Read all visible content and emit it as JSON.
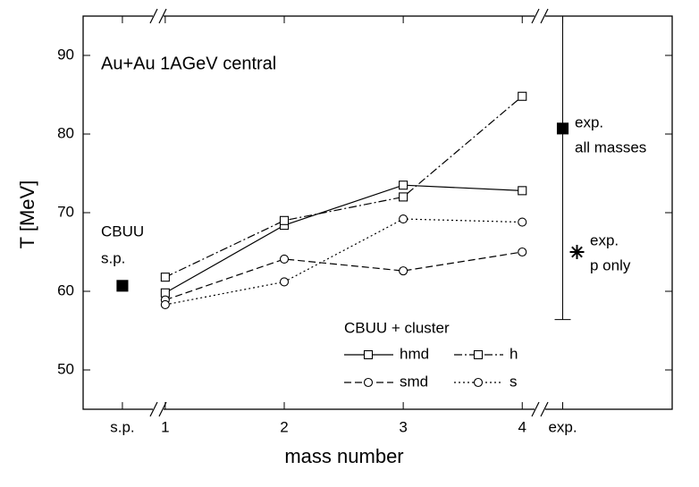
{
  "chart_data": {
    "type": "line",
    "title": "Au+Au 1AGeV central",
    "xlabel": "mass number",
    "ylabel": "T  [MeV]",
    "xlim": [
      0.31,
      5.26
    ],
    "ylim": [
      45,
      95
    ],
    "xticks": [
      {
        "value": 0.64,
        "label": "s.p."
      },
      1,
      2,
      3,
      4,
      {
        "value": 4.34,
        "label": "exp."
      }
    ],
    "yticks": [
      50,
      60,
      70,
      80,
      90
    ],
    "x": [
      1,
      2,
      3,
      4
    ],
    "legend_title": "CBUU + cluster",
    "series": [
      {
        "name": "hmd",
        "color": "#000000",
        "marker": "square",
        "dash": "solid",
        "values": [
          59.8,
          68.4,
          73.5,
          72.8
        ]
      },
      {
        "name": "h",
        "color": "#000000",
        "marker": "square",
        "dash": "dashdot",
        "values": [
          61.8,
          69.0,
          72.0,
          84.8
        ]
      },
      {
        "name": "smd",
        "color": "#000000",
        "marker": "circle",
        "dash": "dashed",
        "values": [
          58.9,
          64.1,
          62.6,
          65.0
        ]
      },
      {
        "name": "s",
        "color": "#000000",
        "marker": "circle",
        "dash": "dotted",
        "values": [
          58.3,
          61.2,
          69.2,
          68.8
        ]
      }
    ],
    "points": [
      {
        "label": [
          "CBUU",
          "s.p."
        ],
        "x": 0.64,
        "y": 60.7,
        "marker": "filled-square"
      },
      {
        "label": [
          "exp.",
          "all masses"
        ],
        "x": 4.34,
        "y": 80.7,
        "error_low": 24.3,
        "error_high": 14.3,
        "marker": "filled-square"
      },
      {
        "label": [
          "exp.",
          "p only"
        ],
        "x": 4.46,
        "y": 65.0,
        "marker": "star"
      }
    ]
  }
}
